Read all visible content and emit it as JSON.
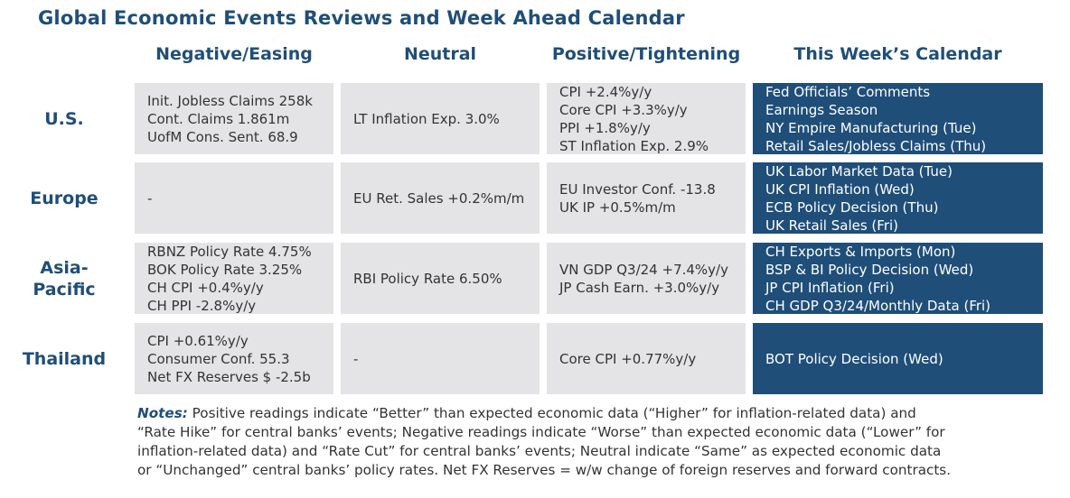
{
  "title": "Global Economic Events Reviews and Week Ahead Calendar",
  "columns": [
    "Negative/Easing",
    "Neutral",
    "Positive/Tightening",
    "This Week’s Calendar"
  ],
  "rows": [
    {
      "region": [
        "U.S."
      ],
      "negative": [
        "Init. Jobless Claims 258k",
        "Cont. Claims 1.861m",
        "UofM Cons. Sent. 68.9"
      ],
      "neutral": [
        "LT Inflation Exp. 3.0%"
      ],
      "positive": [
        "CPI +2.4%y/y",
        "Core CPI +3.3%y/y",
        "PPI +1.8%y/y",
        "ST Inflation Exp. 2.9%"
      ],
      "calendar": [
        "Fed Officials’ Comments",
        "Earnings Season",
        "NY Empire Manufacturing (Tue)",
        "Retail Sales/Jobless Claims (Thu)"
      ]
    },
    {
      "region": [
        "Europe"
      ],
      "negative": [
        "-"
      ],
      "neutral": [
        "EU Ret. Sales +0.2%m/m"
      ],
      "positive": [
        "EU Investor Conf. -13.8",
        "UK IP +0.5%m/m"
      ],
      "calendar": [
        "UK Labor Market Data (Tue)",
        "UK CPI Inflation (Wed)",
        "ECB Policy Decision (Thu)",
        "UK Retail Sales (Fri)"
      ]
    },
    {
      "region": [
        "Asia-",
        "Pacific"
      ],
      "negative": [
        "RBNZ Policy Rate 4.75%",
        "BOK Policy Rate 3.25%",
        "CH CPI +0.4%y/y",
        "CH PPI -2.8%y/y"
      ],
      "neutral": [
        "RBI Policy Rate 6.50%"
      ],
      "positive": [
        "VN GDP Q3/24 +7.4%y/y",
        "JP Cash Earn. +3.0%y/y"
      ],
      "calendar": [
        "CH Exports & Imports (Mon)",
        "BSP & BI Policy Decision (Wed)",
        "JP CPI Inflation (Fri)",
        "CH GDP Q3/24/Monthly Data (Fri)"
      ]
    },
    {
      "region": [
        "Thailand"
      ],
      "negative": [
        "CPI +0.61%y/y",
        "Consumer Conf. 55.3",
        "Net FX Reserves $ -2.5b"
      ],
      "neutral": [
        "-"
      ],
      "positive": [
        "Core CPI +0.77%y/y"
      ],
      "calendar": [
        "BOT Policy Decision (Wed)"
      ]
    }
  ],
  "notes": {
    "label": "Notes:",
    "lines": [
      " Positive readings indicate “Better” than expected economic data (“Higher” for inflation-related data) and",
      "“Rate Hike” for central banks’ events; Negative readings indicate “Worse” than expected economic data (“Lower” for",
      "inflation-related data) and “Rate Cut” for central banks’ events; Neutral indicate “Same” as expected economic data",
      "or “Unchanged” central banks’ policy rates. Net FX Reserves = w/w change of foreign reserves and forward contracts."
    ]
  },
  "colors": {
    "header_blue": "#1f4e79",
    "cell_gray": "#e4e4e6",
    "calendar_bg": "#1f4e79"
  }
}
